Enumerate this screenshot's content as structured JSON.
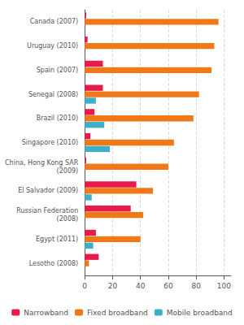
{
  "chart_data": {
    "type": "bar",
    "orientation": "horizontal",
    "categories": [
      "Lesotho (2008)",
      "Egypt (2011)",
      "Russian Federation\n(2008)",
      "El Salvador (2009)",
      "China, Hong Kong SAR\n(2009)",
      "Singapore (2010)",
      "Brazil (2010)",
      "Senegal (2008)",
      "Spain (2007)",
      "Uruguay (2010)",
      "Canada (2007)"
    ],
    "series": [
      {
        "name": "Narrowband",
        "color": "#e8194b",
        "values": [
          10,
          8,
          33,
          37,
          1,
          4,
          7,
          13,
          13,
          2,
          1
        ]
      },
      {
        "name": "Fixed broadband",
        "color": "#f07818",
        "values": [
          3,
          40,
          42,
          49,
          60,
          64,
          78,
          82,
          91,
          93,
          96
        ]
      },
      {
        "name": "Mobile broadband",
        "color": "#3cb0c8",
        "values": [
          0,
          6,
          0,
          5,
          0,
          18,
          14,
          8,
          0,
          0,
          0
        ]
      }
    ],
    "xlim": [
      0,
      105
    ],
    "xticks": [
      0,
      20,
      40,
      60,
      80,
      100
    ],
    "grid": true,
    "legend": "bottom"
  }
}
